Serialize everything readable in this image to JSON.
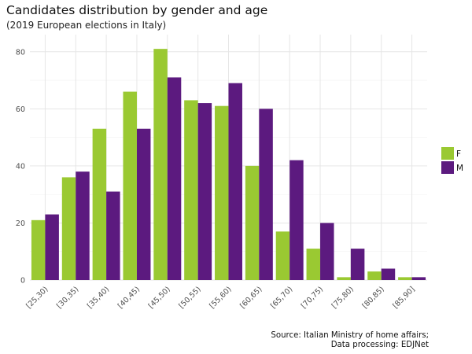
{
  "chart_data": {
    "type": "bar",
    "title": "Candidates distribution by gender and age",
    "subtitle": "(2019 European elections in Italy)",
    "caption": [
      "Source: Italian Ministry of home affairs;",
      "Data processing: EDJNet"
    ],
    "xlabel": "",
    "ylabel": "",
    "categories": [
      "[25,30)",
      "[30,35)",
      "[35,40)",
      "[40,45)",
      "[45,50)",
      "[50,55)",
      "[55,60)",
      "[60,65)",
      "[65,70)",
      "[70,75)",
      "[75,80)",
      "[80,85)",
      "[85,90]"
    ],
    "series": [
      {
        "name": "F",
        "color": "#9ac932",
        "values": [
          21,
          36,
          53,
          66,
          81,
          63,
          61,
          40,
          17,
          11,
          1,
          3,
          1
        ]
      },
      {
        "name": "M",
        "color": "#5c1a7f",
        "values": [
          23,
          38,
          31,
          53,
          71,
          62,
          69,
          60,
          42,
          20,
          11,
          4,
          1
        ]
      }
    ],
    "ylim": [
      0,
      86
    ],
    "yticks": [
      0,
      20,
      40,
      60,
      80
    ],
    "grid": true,
    "legend": "right"
  }
}
